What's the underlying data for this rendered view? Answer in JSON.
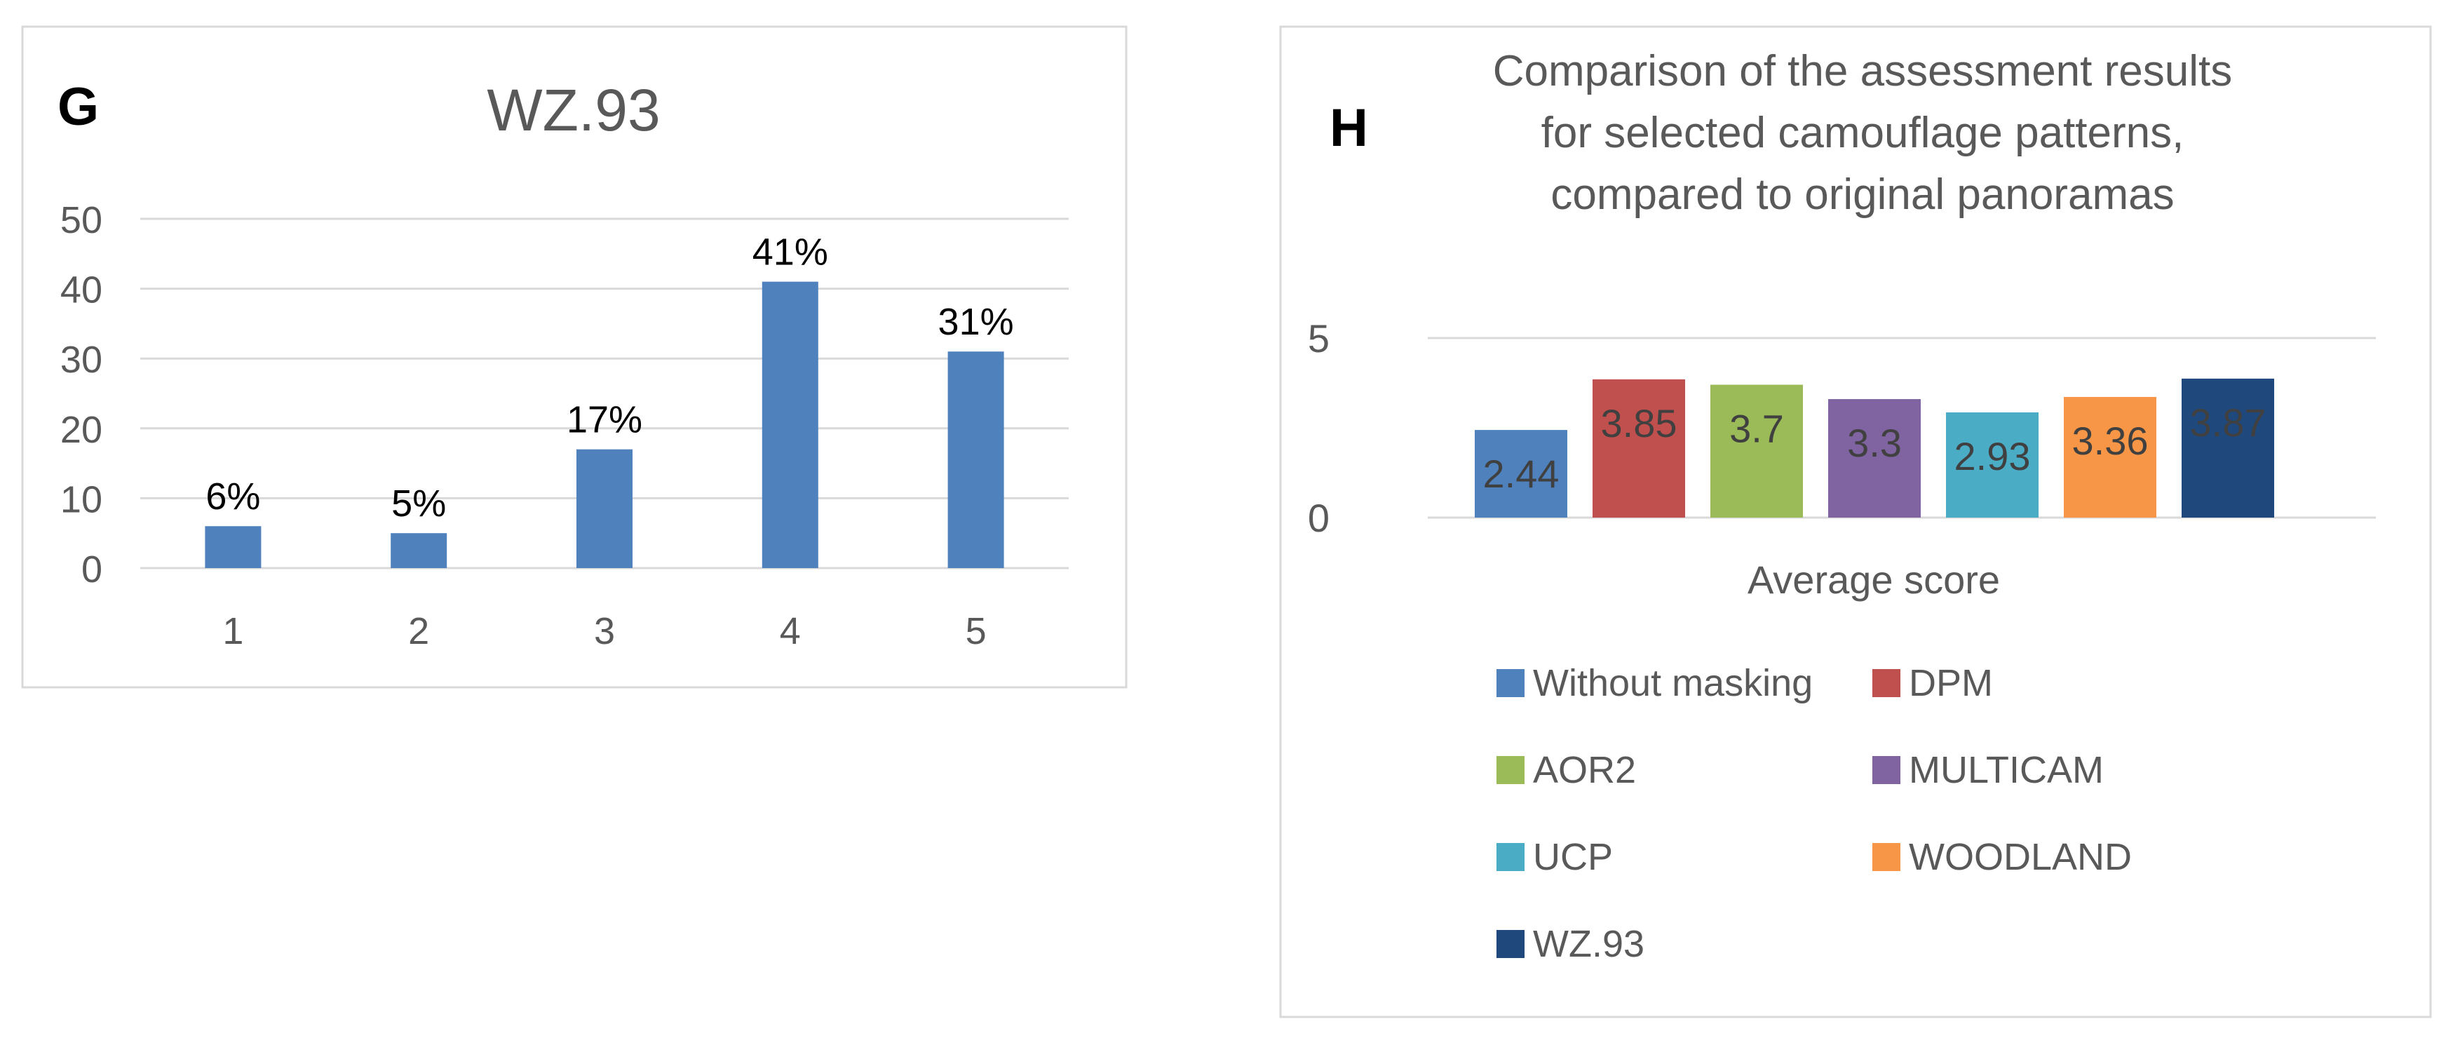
{
  "chart_data": [
    {
      "type": "bar",
      "panel": "G",
      "title": "WZ.93",
      "categories": [
        "1",
        "2",
        "3",
        "4",
        "5"
      ],
      "values": [
        6,
        5,
        17,
        41,
        31
      ],
      "data_labels": [
        "6%",
        "5%",
        "17%",
        "41%",
        "31%"
      ],
      "yticks": [
        "0",
        "10",
        "20",
        "30",
        "40",
        "50"
      ],
      "ylim": [
        0,
        50
      ],
      "xlabel": "",
      "ylabel": "",
      "grid": true,
      "color": "#4f81bd"
    },
    {
      "type": "bar",
      "panel": "H",
      "title": [
        "Comparison of the assessment results",
        "for selected camouflage patterns,",
        "compared to original panoramas"
      ],
      "category": "Average score",
      "series": [
        {
          "name": "Without masking",
          "value": 2.44,
          "label": "2.44",
          "color": "#4f81bd"
        },
        {
          "name": "DPM",
          "value": 3.85,
          "label": "3.85",
          "color": "#c0504d"
        },
        {
          "name": "AOR2",
          "value": 3.7,
          "label": "3.7",
          "color": "#9bbb59"
        },
        {
          "name": "MULTICAM",
          "value": 3.3,
          "label": "3.3",
          "color": "#8064a2"
        },
        {
          "name": "UCP",
          "value": 2.93,
          "label": "2.93",
          "color": "#4bacc6"
        },
        {
          "name": "WOODLAND",
          "value": 3.36,
          "label": "3.36",
          "color": "#f79646"
        },
        {
          "name": "WZ.93",
          "value": 3.87,
          "label": "3.87",
          "color": "#1f497d"
        }
      ],
      "yticks": [
        "0",
        "5"
      ],
      "ylim": [
        0,
        5
      ],
      "grid": true,
      "legend_position": "bottom"
    }
  ]
}
